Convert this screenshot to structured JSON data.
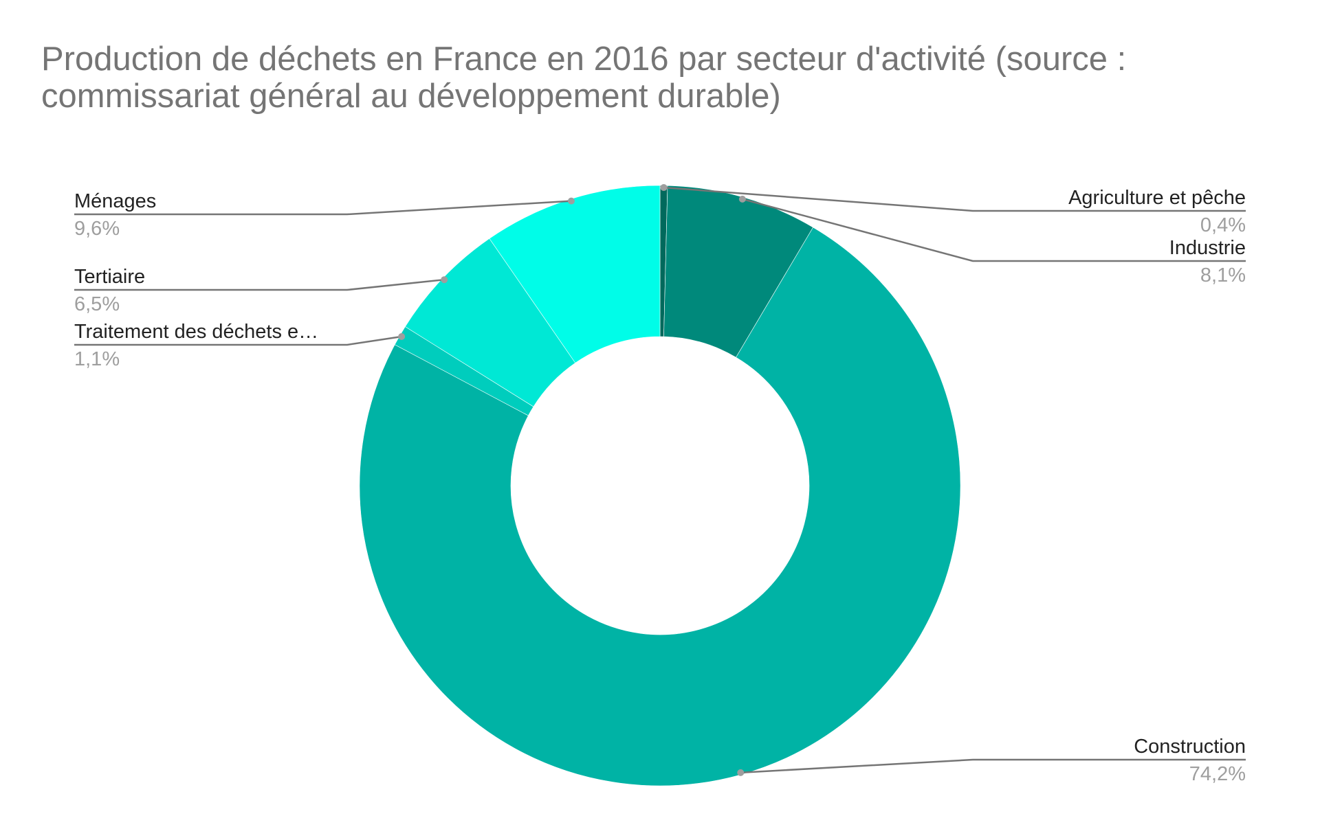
{
  "chart_data": {
    "type": "pie",
    "variant": "donut",
    "title_lines": [
      "Production de déchets en France en 2016 par secteur d'activité (source :",
      "commissariat général au développement durable)"
    ],
    "legend": "labels",
    "slices": [
      {
        "name": "Agriculture et pêche",
        "value": 0.4,
        "label": "0,4%",
        "color": "#00695c"
      },
      {
        "name": "Industrie",
        "value": 8.1,
        "label": "8,1%",
        "color": "#00897b"
      },
      {
        "name": "Construction",
        "value": 74.2,
        "label": "74,2%",
        "color": "#00b3a5"
      },
      {
        "name": "Traitement des déchets e…",
        "value": 1.1,
        "label": "1,1%",
        "color": "#00cdbd"
      },
      {
        "name": "Tertiaire",
        "value": 6.5,
        "label": "6,5%",
        "color": "#00e8d5"
      },
      {
        "name": "Ménages",
        "value": 9.6,
        "label": "9,6%",
        "color": "#00fde8"
      }
    ]
  }
}
